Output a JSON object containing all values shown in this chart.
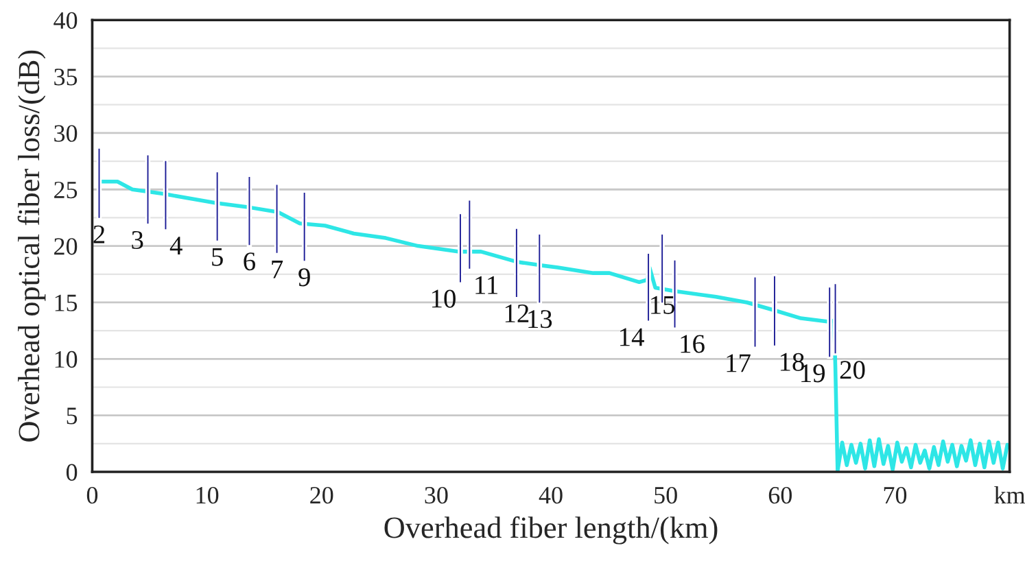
{
  "chart_data": {
    "type": "line",
    "xlabel": "Overhead fiber length/(km)",
    "ylabel": "Overhead optical fiber loss/(dB)",
    "xlim": [
      0,
      80
    ],
    "xticks": [
      0,
      10,
      20,
      30,
      40,
      50,
      60,
      70,
      {
        "value": 80,
        "label": "km"
      }
    ],
    "ylim": [
      0,
      40
    ],
    "yticks": [
      0,
      5,
      10,
      15,
      20,
      25,
      30,
      35,
      40
    ],
    "grid": "y",
    "legend": false,
    "marker": "none",
    "line_style": "solid",
    "series": [
      {
        "color": "#2ee6e6",
        "x": [
          0.6,
          2.2,
          3.5,
          6.3,
          10.8,
          13.8,
          16.2,
          18.1,
          20.3,
          22.8,
          25.6,
          28.4,
          31.9,
          33.9,
          37.0,
          39.0,
          40.6,
          43.7,
          45.1,
          47.7,
          48.4,
          48.6,
          49.1,
          50.8,
          54.4,
          57.1,
          59.5,
          61.8,
          64.2,
          64.7,
          64.8,
          65.0,
          65.4,
          65.8,
          66.2,
          66.6,
          67.0,
          67.4,
          67.8,
          68.2,
          68.6,
          69.0,
          69.4,
          69.8,
          70.2,
          70.6,
          71.0,
          71.4,
          71.8,
          72.2,
          72.6,
          73.0,
          73.4,
          73.8,
          74.2,
          74.6,
          75.0,
          75.4,
          75.8,
          76.2,
          76.6,
          77.0,
          77.4,
          77.8,
          78.2,
          78.6,
          79.0,
          79.4,
          79.8
        ],
        "values": [
          25.7,
          25.7,
          25.0,
          24.6,
          23.8,
          23.4,
          23.0,
          22.0,
          21.8,
          21.1,
          20.7,
          20.0,
          19.5,
          19.5,
          18.6,
          18.3,
          18.1,
          17.6,
          17.6,
          16.8,
          17.0,
          18.1,
          16.3,
          16.0,
          15.5,
          15.0,
          14.3,
          13.6,
          13.3,
          13.4,
          9.4,
          0.1,
          2.6,
          0.6,
          2.4,
          0.8,
          2.5,
          0.3,
          2.8,
          0.5,
          2.9,
          0.7,
          2.3,
          0.2,
          2.6,
          0.9,
          2.1,
          0.4,
          2.4,
          0.8,
          1.9,
          0.3,
          2.2,
          0.6,
          2.7,
          0.9,
          2.4,
          0.5,
          2.3,
          1.0,
          2.8,
          0.6,
          2.5,
          0.4,
          2.7,
          0.8,
          2.6,
          0.3,
          2.4
        ]
      },
      {
        "type": "bar",
        "name": "2",
        "color": "#1c1c96",
        "x": [
          0.6
        ],
        "base": [
          22.4
        ],
        "values": [
          6.3
        ]
      },
      {
        "type": "bar",
        "name": "3",
        "color": "#1c1c96",
        "x": [
          4.85
        ],
        "base": [
          21.9
        ],
        "values": [
          6.2
        ]
      },
      {
        "type": "bar",
        "name": "4",
        "color": "#1c1c96",
        "x": [
          6.4
        ],
        "base": [
          21.4
        ],
        "values": [
          6.2
        ]
      },
      {
        "type": "bar",
        "name": "5",
        "color": "#1c1c96",
        "x": [
          10.9
        ],
        "base": [
          20.4
        ],
        "values": [
          6.2
        ]
      },
      {
        "type": "bar",
        "name": "6",
        "color": "#1c1c96",
        "x": [
          13.7
        ],
        "base": [
          20.0
        ],
        "values": [
          6.2
        ]
      },
      {
        "type": "bar",
        "name": "7",
        "color": "#1c1c96",
        "x": [
          16.1
        ],
        "base": [
          19.3
        ],
        "values": [
          6.2
        ]
      },
      {
        "type": "bar",
        "name": "9",
        "color": "#1c1c96",
        "x": [
          18.5
        ],
        "base": [
          18.6
        ],
        "values": [
          6.2
        ]
      },
      {
        "type": "bar",
        "name": "10",
        "color": "#1c1c96",
        "x": [
          32.1
        ],
        "base": [
          16.7
        ],
        "values": [
          6.2
        ]
      },
      {
        "type": "bar",
        "name": "11",
        "color": "#1c1c96",
        "x": [
          32.9
        ],
        "base": [
          17.9
        ],
        "values": [
          6.2
        ]
      },
      {
        "type": "bar",
        "name": "12",
        "color": "#1c1c96",
        "x": [
          37.0
        ],
        "base": [
          15.4
        ],
        "values": [
          6.2
        ]
      },
      {
        "type": "bar",
        "name": "13",
        "color": "#1c1c96",
        "x": [
          39.0
        ],
        "base": [
          14.9
        ],
        "values": [
          6.2
        ]
      },
      {
        "type": "bar",
        "name": "14",
        "color": "#1c1c96",
        "x": [
          48.5
        ],
        "base": [
          13.3
        ],
        "values": [
          6.1
        ]
      },
      {
        "type": "bar",
        "name": "15",
        "color": "#1c1c96",
        "x": [
          49.7
        ],
        "base": [
          14.9
        ],
        "values": [
          6.2
        ]
      },
      {
        "type": "bar",
        "name": "16",
        "color": "#1c1c96",
        "x": [
          50.8
        ],
        "base": [
          12.7
        ],
        "values": [
          6.1
        ]
      },
      {
        "type": "bar",
        "name": "17",
        "color": "#1c1c96",
        "x": [
          57.8
        ],
        "base": [
          11.0
        ],
        "values": [
          6.3
        ]
      },
      {
        "type": "bar",
        "name": "18",
        "color": "#1c1c96",
        "x": [
          59.5
        ],
        "base": [
          11.1
        ],
        "values": [
          6.3
        ]
      },
      {
        "type": "bar",
        "name": "19",
        "color": "#1c1c96",
        "x": [
          64.3
        ],
        "base": [
          10.1
        ],
        "values": [
          6.3
        ]
      },
      {
        "type": "bar",
        "name": "20",
        "color": "#1c1c96",
        "x": [
          64.8
        ],
        "base": [
          10.4
        ],
        "values": [
          6.3
        ]
      }
    ]
  }
}
